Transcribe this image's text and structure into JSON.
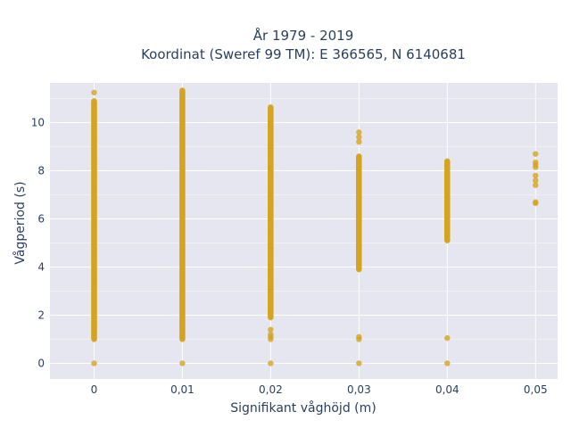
{
  "chart_data": {
    "type": "scatter",
    "title_line1": "År 1979 - 2019",
    "title_line2": "Koordinat (Sweref 99 TM): E 366565, N 6140681",
    "xlabel": "Signifikant våghöjd (m)",
    "ylabel": "Vågperiod (s)",
    "xlim": [
      -0.005,
      0.0525
    ],
    "ylim": [
      -0.65,
      11.65
    ],
    "x_ticks": [
      {
        "value": 0,
        "label": "0"
      },
      {
        "value": 0.01,
        "label": "0,01"
      },
      {
        "value": 0.02,
        "label": "0,02"
      },
      {
        "value": 0.03,
        "label": "0,03"
      },
      {
        "value": 0.04,
        "label": "0,04"
      },
      {
        "value": 0.05,
        "label": "0,05"
      }
    ],
    "y_ticks": [
      {
        "value": 0,
        "label": "0"
      },
      {
        "value": 2,
        "label": "2"
      },
      {
        "value": 4,
        "label": "4"
      },
      {
        "value": 6,
        "label": "6"
      },
      {
        "value": 8,
        "label": "8"
      },
      {
        "value": 10,
        "label": "10"
      }
    ],
    "grid": true,
    "marker_color": "#d4a420",
    "plot_bg": "#e5e6ef",
    "series": [
      {
        "x": 0,
        "ranges": [
          [
            1.0,
            10.9
          ]
        ],
        "points": [
          0,
          11.25,
          10.8,
          10.6,
          10.3,
          9.9,
          9.5
        ]
      },
      {
        "x": 0.01,
        "ranges": [
          [
            1.0,
            11.35
          ]
        ],
        "points": [
          0
        ]
      },
      {
        "x": 0.02,
        "ranges": [
          [
            1.9,
            10.65
          ]
        ],
        "points": [
          0,
          1.0,
          1.1,
          1.2,
          1.4
        ]
      },
      {
        "x": 0.03,
        "ranges": [
          [
            3.9,
            8.6
          ]
        ],
        "points": [
          0,
          1.0,
          1.1,
          9.2,
          9.4,
          9.6
        ]
      },
      {
        "x": 0.04,
        "ranges": [
          [
            5.1,
            8.4
          ]
        ],
        "points": [
          0,
          1.05
        ]
      },
      {
        "x": 0.05,
        "ranges": [],
        "points": [
          6.65,
          6.7,
          7.4,
          7.6,
          7.8,
          8.15,
          8.25,
          8.35,
          8.7
        ]
      }
    ]
  }
}
